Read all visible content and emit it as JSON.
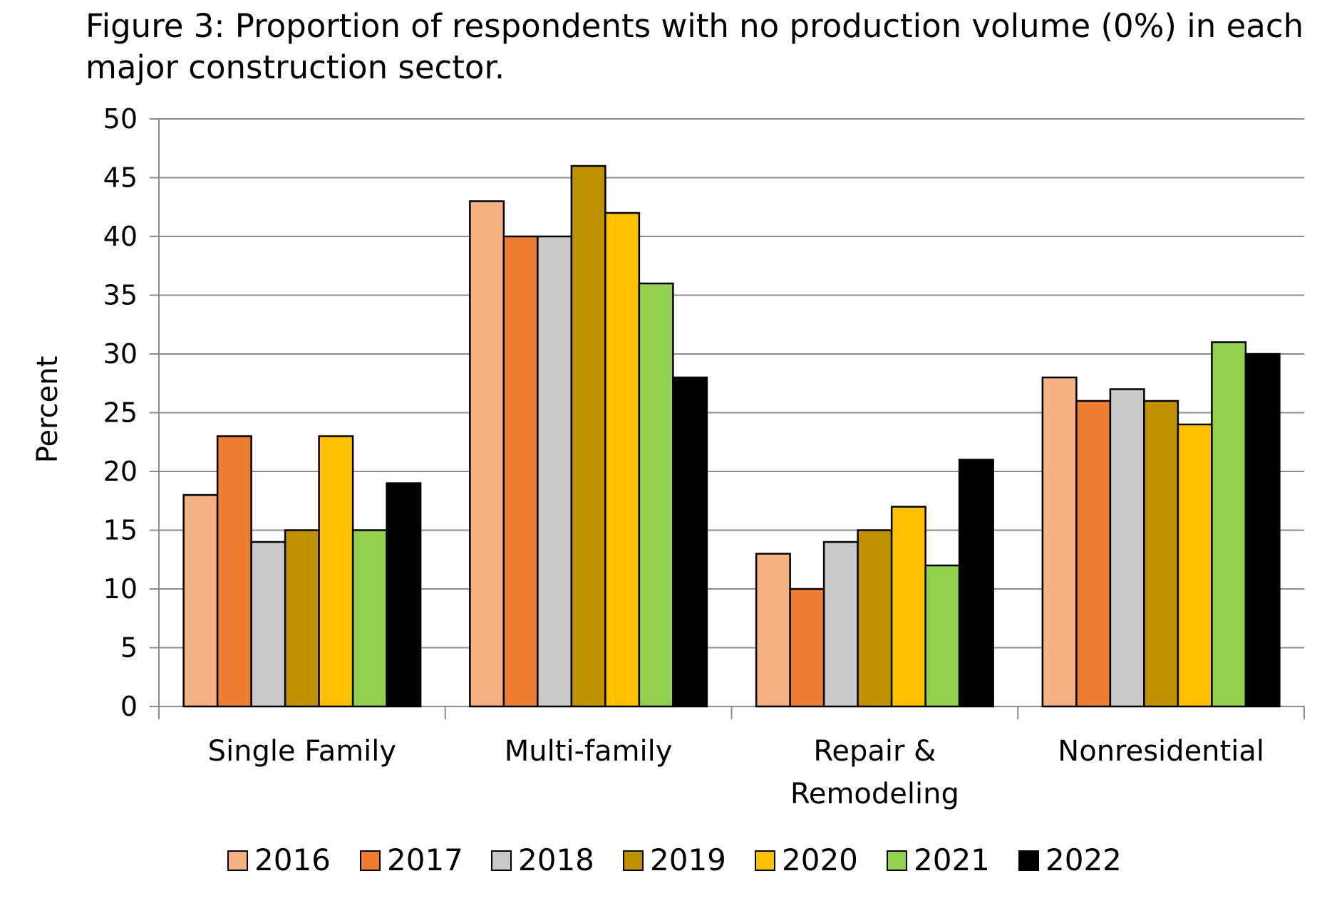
{
  "chart_data": {
    "type": "bar",
    "title": "Figure 3: Proportion of respondents with no production volume (0%) in each major construction sector.",
    "ylabel": "Percent",
    "xlabel": "",
    "ylim": [
      0,
      50
    ],
    "yticks": [
      0,
      5,
      10,
      15,
      20,
      25,
      30,
      35,
      40,
      45,
      50
    ],
    "grid": true,
    "legend_position": "bottom",
    "categories": [
      [
        "Single Family"
      ],
      [
        "Multi-family"
      ],
      [
        "Repair &",
        "Remodeling"
      ],
      [
        "Nonresidential"
      ]
    ],
    "series": [
      {
        "name": "2016",
        "color": "#F4B183",
        "values": [
          18,
          43,
          13,
          28
        ]
      },
      {
        "name": "2017",
        "color": "#ED7D31",
        "values": [
          23,
          40,
          10,
          26
        ]
      },
      {
        "name": "2018",
        "color": "#C9C9C9",
        "values": [
          14,
          40,
          14,
          27
        ]
      },
      {
        "name": "2019",
        "color": "#BF9000",
        "values": [
          15,
          46,
          15,
          26
        ]
      },
      {
        "name": "2020",
        "color": "#FFC000",
        "values": [
          23,
          42,
          17,
          24
        ]
      },
      {
        "name": "2021",
        "color": "#92D050",
        "values": [
          15,
          36,
          12,
          31
        ]
      },
      {
        "name": "2022",
        "color": "#000000",
        "values": [
          19,
          28,
          21,
          30
        ]
      }
    ]
  }
}
